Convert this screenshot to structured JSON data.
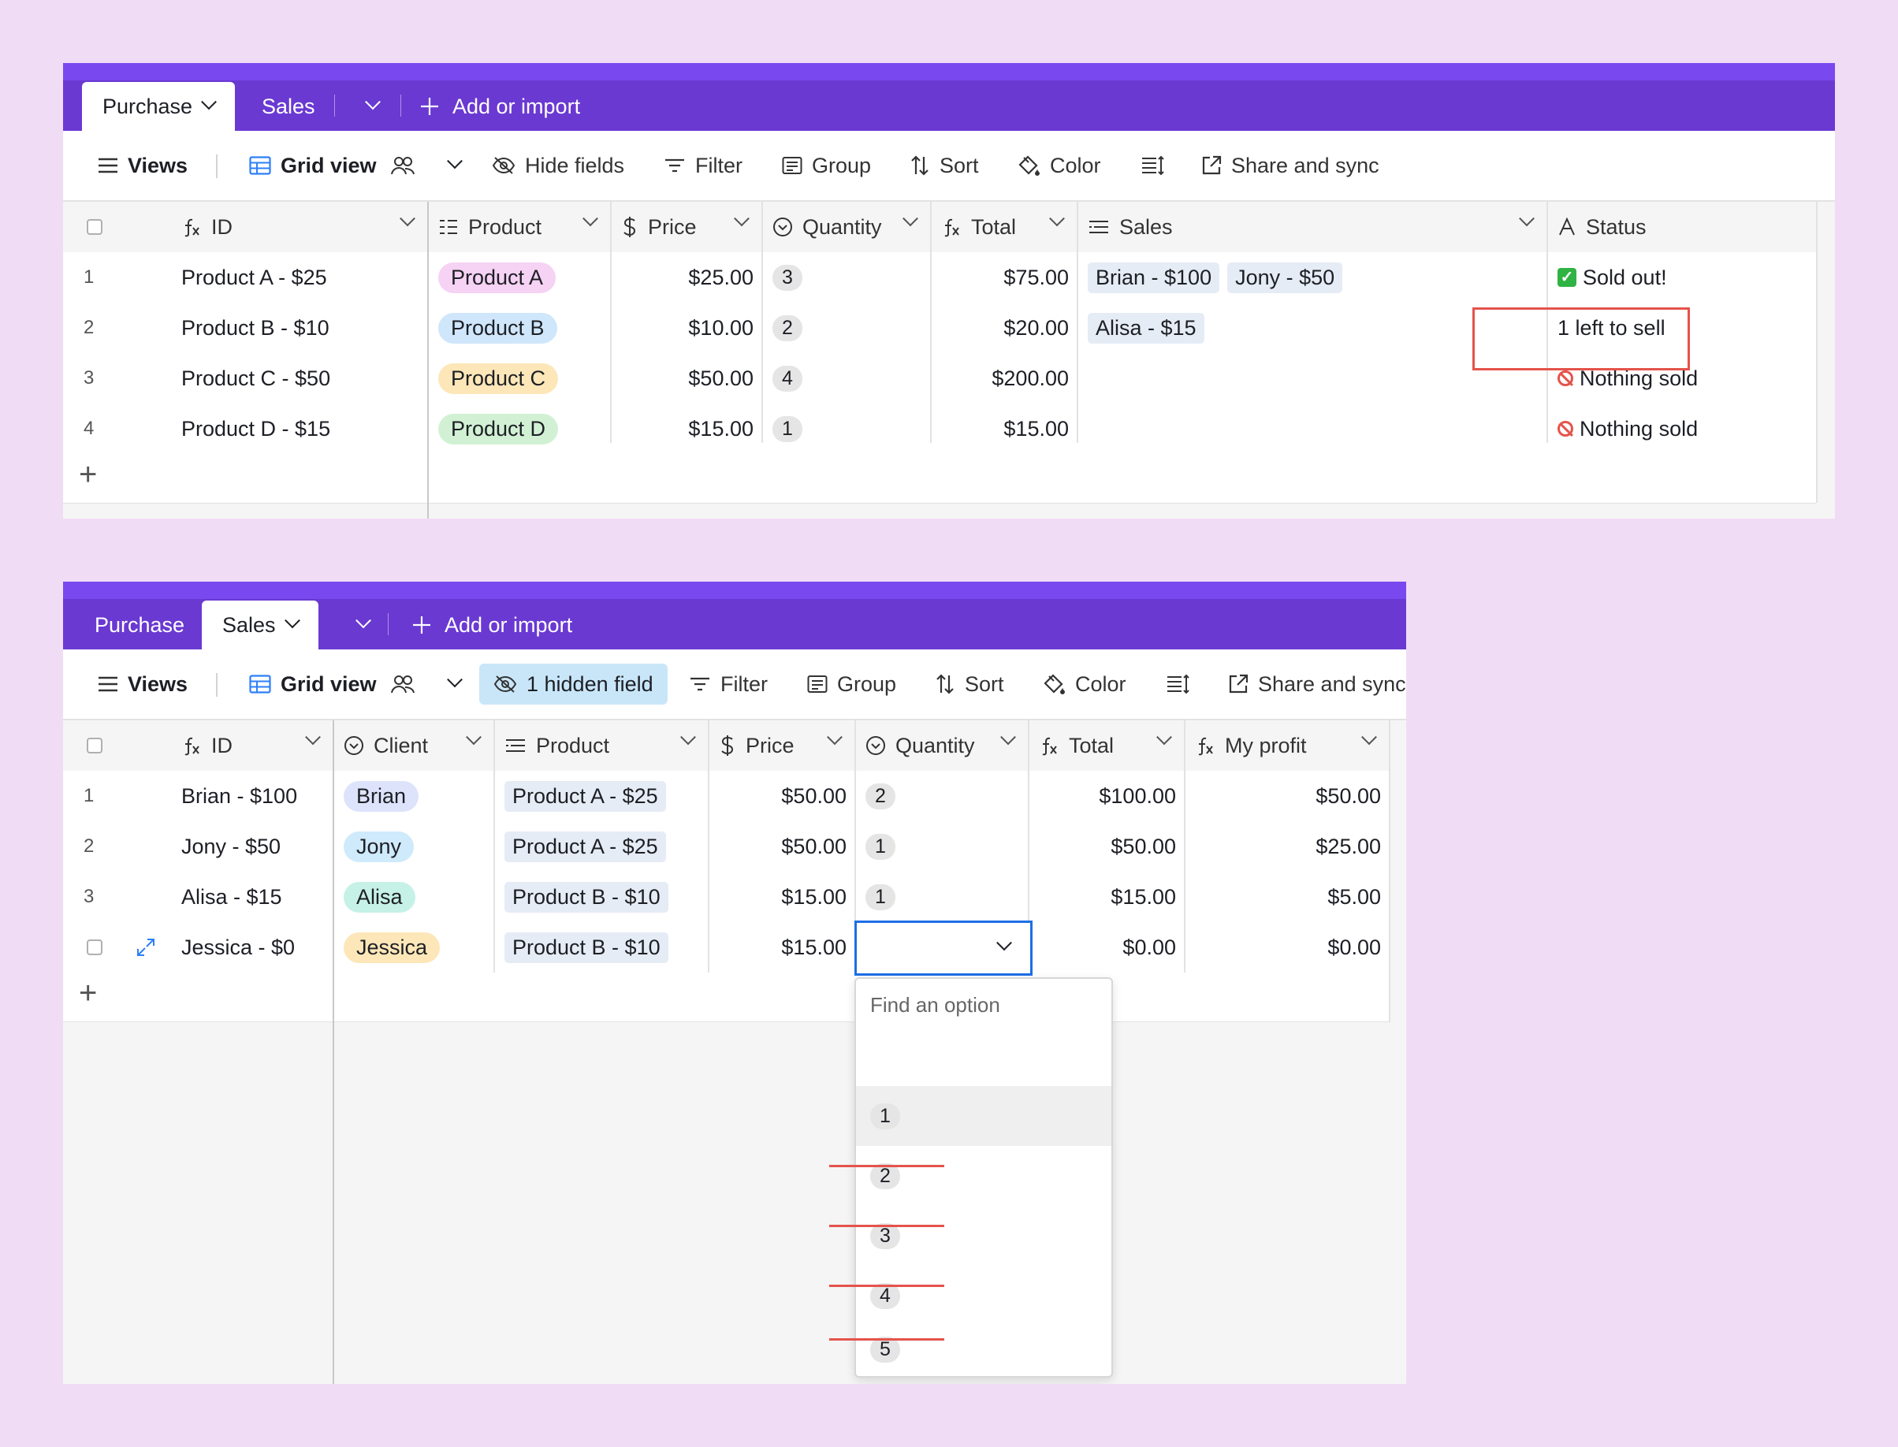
{
  "top": {
    "tabs": {
      "purchase": "Purchase",
      "sales": "Sales",
      "add": "Add or import"
    },
    "toolbar": {
      "views": "Views",
      "grid": "Grid view",
      "hide": "Hide fields",
      "filter": "Filter",
      "group": "Group",
      "sort": "Sort",
      "color": "Color",
      "share": "Share and sync"
    },
    "headers": {
      "id": "ID",
      "product": "Product",
      "price": "Price",
      "quantity": "Quantity",
      "total": "Total",
      "sales": "Sales",
      "status": "Status"
    },
    "rows": [
      {
        "n": "1",
        "id": "Product A - $25",
        "product": "Product A",
        "price": "$25.00",
        "qty": "3",
        "total": "$75.00",
        "sales": [
          "Brian - $100",
          "Jony - $50"
        ],
        "status": "Sold out!",
        "status_icon": "check-emoji"
      },
      {
        "n": "2",
        "id": "Product B - $10",
        "product": "Product B",
        "price": "$10.00",
        "qty": "2",
        "total": "$20.00",
        "sales": [
          "Alisa - $15"
        ],
        "status": "1 left to sell",
        "status_icon": ""
      },
      {
        "n": "3",
        "id": "Product C - $50",
        "product": "Product C",
        "price": "$50.00",
        "qty": "4",
        "total": "$200.00",
        "sales": [],
        "status": "Nothing sold",
        "status_icon": "prohibited-emoji"
      },
      {
        "n": "4",
        "id": "Product D - $15",
        "product": "Product D",
        "price": "$15.00",
        "qty": "1",
        "total": "$15.00",
        "sales": [],
        "status": "Nothing sold",
        "status_icon": "prohibited-emoji"
      }
    ],
    "product_colors": [
      "#f6d2f4",
      "#cfe6fb",
      "#fde7b8",
      "#d2f1d4"
    ]
  },
  "bottom": {
    "tabs": {
      "purchase": "Purchase",
      "sales": "Sales",
      "add": "Add or import"
    },
    "toolbar": {
      "views": "Views",
      "grid": "Grid view",
      "hidden": "1 hidden field",
      "filter": "Filter",
      "group": "Group",
      "sort": "Sort",
      "color": "Color",
      "share": "Share and sync"
    },
    "headers": {
      "id": "ID",
      "client": "Client",
      "product": "Product",
      "price": "Price",
      "quantity": "Quantity",
      "total": "Total",
      "profit": "My profit"
    },
    "rows": [
      {
        "n": "1",
        "id": "Brian - $100",
        "client": "Brian",
        "product": "Product A - $25",
        "price": "$50.00",
        "qty": "2",
        "total": "$100.00",
        "profit": "$50.00"
      },
      {
        "n": "2",
        "id": "Jony - $50",
        "client": "Jony",
        "product": "Product A - $25",
        "price": "$50.00",
        "qty": "1",
        "total": "$50.00",
        "profit": "$25.00"
      },
      {
        "n": "3",
        "id": "Alisa - $15",
        "client": "Alisa",
        "product": "Product B - $10",
        "price": "$15.00",
        "qty": "1",
        "total": "$15.00",
        "profit": "$5.00"
      },
      {
        "n": "",
        "id": "Jessica - $0",
        "client": "Jessica",
        "product": "Product B - $10",
        "price": "$15.00",
        "qty": "",
        "total": "$0.00",
        "profit": "$0.00"
      }
    ],
    "client_colors": [
      "#dde3fb",
      "#cfeafb",
      "#c6f1e6",
      "#fde7b8"
    ],
    "dropdown": {
      "placeholder": "Find an option",
      "options": [
        "1",
        "2",
        "3",
        "4",
        "5"
      ],
      "crossed_out": [
        "2",
        "3",
        "4",
        "5"
      ]
    }
  }
}
